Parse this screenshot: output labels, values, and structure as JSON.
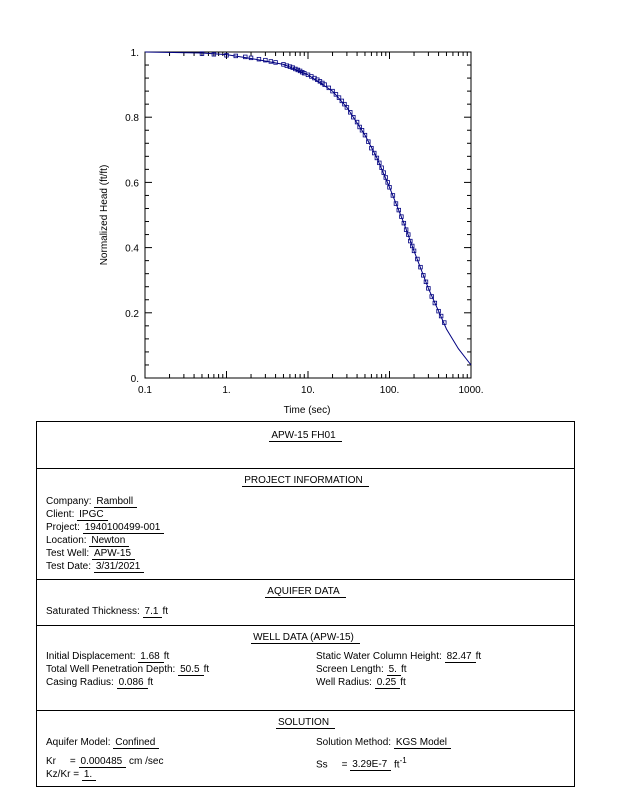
{
  "chart_data": {
    "type": "scatter",
    "xscale": "log",
    "xlim": [
      0.1,
      1000
    ],
    "ylim": [
      0,
      1
    ],
    "xlabel": "Time  (sec)",
    "ylabel": "Normalized Head (ft/ft)",
    "xticks": [
      "0.1",
      "1.",
      "10.",
      "100.",
      "1000."
    ],
    "yticks": [
      "0.",
      "0.2",
      "0.4",
      "0.6",
      "0.8",
      "1."
    ],
    "grid": false,
    "series": [
      {
        "kind": "points",
        "marker": "square",
        "color": "#000080",
        "x": [
          0.5,
          0.7,
          1.0,
          1.3,
          1.7,
          2.0,
          2.5,
          3.0,
          3.5,
          4.0,
          5.0,
          5.5,
          6.0,
          6.5,
          7.0,
          7.5,
          8.0,
          8.5,
          9.0,
          10.0,
          11.0,
          12.0,
          13.0,
          14.0,
          15.0,
          16.0,
          18.0,
          20.0,
          22.0,
          24.0,
          26.0,
          28.0,
          30.0,
          33.0,
          36.0,
          40.0,
          43.0,
          46.0,
          50.0,
          55.0,
          60.0,
          65.0,
          70.0,
          75.0,
          80.0,
          85.0,
          90.0,
          95.0,
          100.0,
          110.0,
          120.0,
          130.0,
          140.0,
          150.0,
          160.0,
          170.0,
          180.0,
          190.0,
          200.0,
          220.0,
          240.0,
          260.0,
          280.0,
          300.0,
          330.0,
          360.0,
          400.0,
          430.0,
          470.0
        ],
        "y": [
          0.995,
          0.993,
          0.99,
          0.988,
          0.985,
          0.982,
          0.978,
          0.975,
          0.971,
          0.968,
          0.962,
          0.958,
          0.955,
          0.952,
          0.948,
          0.945,
          0.942,
          0.938,
          0.935,
          0.93,
          0.925,
          0.92,
          0.915,
          0.91,
          0.905,
          0.9,
          0.89,
          0.88,
          0.87,
          0.86,
          0.85,
          0.84,
          0.83,
          0.815,
          0.8,
          0.785,
          0.77,
          0.76,
          0.745,
          0.725,
          0.705,
          0.69,
          0.675,
          0.66,
          0.645,
          0.63,
          0.615,
          0.6,
          0.585,
          0.56,
          0.535,
          0.515,
          0.495,
          0.475,
          0.455,
          0.44,
          0.42,
          0.405,
          0.39,
          0.365,
          0.34,
          0.315,
          0.295,
          0.275,
          0.25,
          0.23,
          0.205,
          0.19,
          0.17
        ]
      },
      {
        "kind": "line",
        "color": "#000080",
        "x": [
          0.1,
          0.5,
          1.0,
          2.0,
          5.0,
          10.0,
          20.0,
          30.0,
          50.0,
          70.0,
          100.0,
          150.0,
          200.0,
          300.0,
          400.0,
          500.0,
          700.0,
          1000.0
        ],
        "y": [
          1.0,
          0.997,
          0.992,
          0.98,
          0.962,
          0.93,
          0.88,
          0.83,
          0.745,
          0.675,
          0.585,
          0.475,
          0.39,
          0.275,
          0.205,
          0.15,
          0.09,
          0.04
        ]
      }
    ]
  },
  "report": {
    "title": "APW-15  FH01",
    "project": {
      "heading": "PROJECT   INFORMATION",
      "rows": [
        {
          "label": "Company:",
          "value": "Ramboll"
        },
        {
          "label": "Client:",
          "value": "IPGC"
        },
        {
          "label": "Project:",
          "value": "1940100499-001"
        },
        {
          "label": "Location:",
          "value": "Newton"
        },
        {
          "label": "Test Well:",
          "value": "APW-15"
        },
        {
          "label": "Test Date:",
          "value": "3/31/2021"
        }
      ]
    },
    "aquifer": {
      "heading": "AQUIFER   DATA",
      "label": "Saturated  Thickness:",
      "value": "7.1",
      "unit": "ft"
    },
    "well": {
      "heading": "WELL  DATA  (APW-15)",
      "left": [
        {
          "label": "Initial  Displacement:",
          "value": "1.68",
          "unit": "ft"
        },
        {
          "label": "Total  Well  Penetration  Depth:",
          "value": "50.5",
          "unit": "ft"
        },
        {
          "label": "Casing  Radius:",
          "value": "0.086",
          "unit": "ft"
        }
      ],
      "right": [
        {
          "label": "Static  Water  Column  Height:",
          "value": "82.47",
          "unit": "ft"
        },
        {
          "label": "Screen  Length:",
          "value": "5.",
          "unit": "ft"
        },
        {
          "label": "Well  Radius:",
          "value": "0.25",
          "unit": "ft"
        }
      ]
    },
    "solution": {
      "heading": "SOLUTION",
      "model_label": "Aquifer Model:",
      "model_value": "Confined",
      "method_label": "Solution  Method:",
      "method_value": "KGS  Model",
      "kr_label": "Kr",
      "kr_value": "0.000485",
      "kr_unit": "cm /sec",
      "ss_label": "Ss",
      "ss_value": "3.29E-7",
      "ss_unit": "ft",
      "ss_exp": "-1",
      "kz_label": "Kz/Kr",
      "kz_value": "1."
    }
  }
}
